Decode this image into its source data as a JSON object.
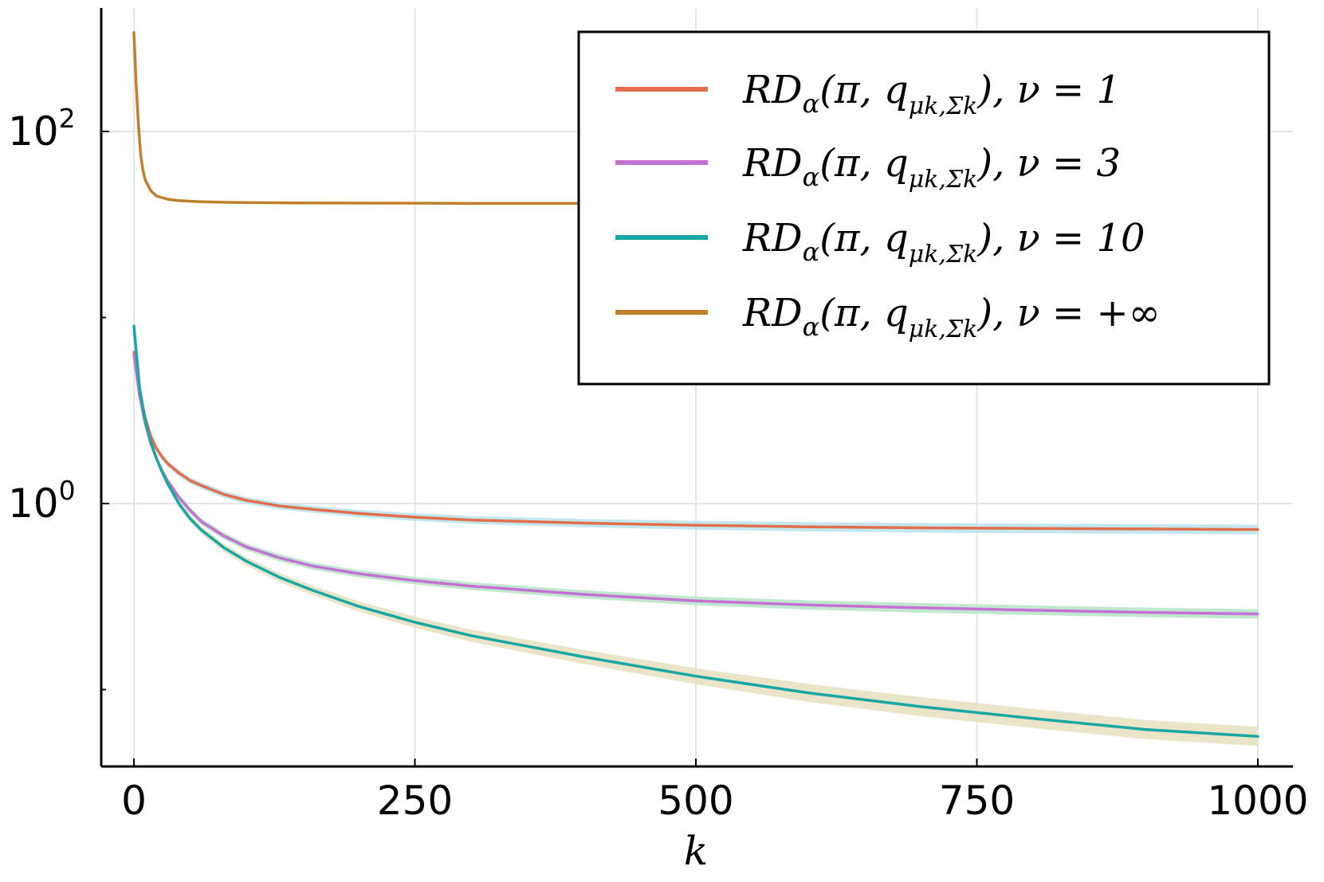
{
  "chart_data": {
    "type": "line",
    "title": "",
    "xlabel": "k",
    "ylabel": "",
    "xlim": [
      -28,
      1032
    ],
    "ylim_log10": [
      -2.0,
      2.6
    ],
    "yscale": "log",
    "grid": true,
    "legend_position": "top-right",
    "x_ticks": [
      {
        "value": 0,
        "label": "0"
      },
      {
        "value": 250,
        "label": "250"
      },
      {
        "value": 500,
        "label": "500"
      },
      {
        "value": 750,
        "label": "750"
      },
      {
        "value": 1000,
        "label": "1000"
      }
    ],
    "y_ticks": [
      {
        "value": 100,
        "base": "10",
        "exp": "2"
      },
      {
        "value": 1,
        "base": "10",
        "exp": "0"
      }
    ],
    "y_minor_ticks": [
      10,
      0.1
    ],
    "series": [
      {
        "name": "RDα(π, qμk,Σk), ν = 1",
        "legend": {
          "main": "RD",
          "sub": "α",
          "args": "(π, q",
          "sub2": "μk,Σk",
          "tail": "), ν = 1"
        },
        "color": "#e26f4b",
        "band_color": "#b9e3ec",
        "x": [
          0,
          5,
          10,
          15,
          20,
          25,
          30,
          40,
          50,
          60,
          80,
          100,
          130,
          160,
          200,
          250,
          300,
          400,
          500,
          600,
          700,
          800,
          900,
          1000
        ],
        "y": [
          6.5,
          4.0,
          2.9,
          2.3,
          1.98,
          1.78,
          1.64,
          1.46,
          1.33,
          1.25,
          1.12,
          1.04,
          0.97,
          0.93,
          0.885,
          0.845,
          0.815,
          0.785,
          0.765,
          0.75,
          0.74,
          0.735,
          0.73,
          0.725
        ]
      },
      {
        "name": "RDα(π, qμk,Σk), ν = 3",
        "legend": {
          "main": "RD",
          "sub": "α",
          "args": "(π, q",
          "sub2": "μk,Σk",
          "tail": "), ν = 3"
        },
        "color": "#c571d4",
        "band_color": "#b6e3c6",
        "x": [
          0,
          5,
          10,
          15,
          20,
          25,
          30,
          40,
          50,
          60,
          80,
          100,
          130,
          160,
          200,
          250,
          300,
          400,
          500,
          600,
          700,
          800,
          900,
          1000
        ],
        "y": [
          6.3,
          3.8,
          2.7,
          2.1,
          1.75,
          1.5,
          1.32,
          1.08,
          0.92,
          0.8,
          0.67,
          0.585,
          0.51,
          0.46,
          0.42,
          0.385,
          0.36,
          0.325,
          0.3,
          0.285,
          0.275,
          0.267,
          0.26,
          0.255
        ]
      },
      {
        "name": "RDα(π, qμk,Σk), ν = 10",
        "legend": {
          "main": "RD",
          "sub": "α",
          "args": "(π, q",
          "sub2": "μk,Σk",
          "tail": "), ν = 10"
        },
        "color": "#17a8a5",
        "band_color": "#e6dfbf",
        "x": [
          0,
          5,
          10,
          15,
          20,
          25,
          30,
          40,
          50,
          60,
          80,
          100,
          130,
          160,
          200,
          250,
          300,
          400,
          500,
          600,
          700,
          800,
          900,
          1000
        ],
        "y": [
          9.0,
          4.2,
          2.8,
          2.15,
          1.75,
          1.48,
          1.28,
          1.0,
          0.83,
          0.72,
          0.58,
          0.49,
          0.4,
          0.34,
          0.28,
          0.23,
          0.195,
          0.15,
          0.118,
          0.096,
          0.081,
          0.07,
          0.061,
          0.056
        ]
      },
      {
        "name": "RDα(π, qμk,Σk), ν = +∞",
        "legend": {
          "main": "RD",
          "sub": "α",
          "args": "(π, q",
          "sub2": "μk,Σk",
          "tail": "), ν = +∞"
        },
        "color": "#c27f2b",
        "band_color": "#c27f2b",
        "x": [
          0,
          2,
          4,
          6,
          8,
          10,
          15,
          20,
          30,
          40,
          60,
          80,
          100,
          150,
          200,
          300,
          400
        ],
        "y": [
          340,
          180,
          110,
          75,
          62,
          55,
          48,
          45,
          43.2,
          42.5,
          41.9,
          41.6,
          41.5,
          41.3,
          41.2,
          41.1,
          41.1
        ]
      }
    ]
  }
}
